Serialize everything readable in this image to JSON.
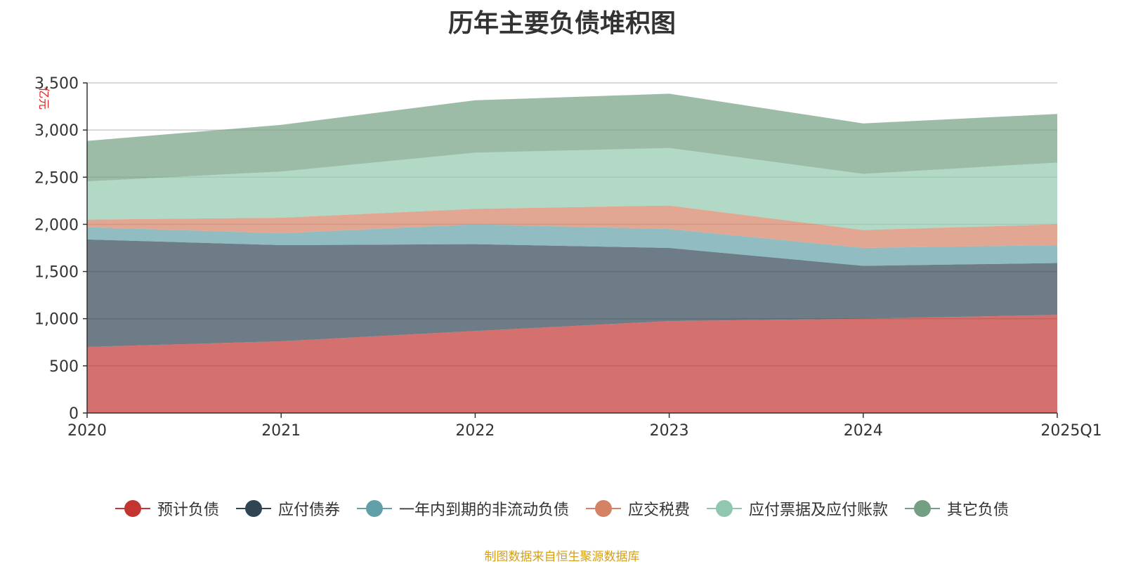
{
  "chart_data": {
    "type": "area",
    "stacked": true,
    "title": "历年主要负债堆积图",
    "ylabel": "亿元",
    "xlabel": "",
    "categories": [
      "2020",
      "2021",
      "2022",
      "2023",
      "2024",
      "2025Q1"
    ],
    "y_ticks": [
      "0",
      "500",
      "1,000",
      "1,500",
      "2,000",
      "2,500",
      "3,000",
      "3,500"
    ],
    "ylim": [
      0,
      3500
    ],
    "grid": true,
    "legend_position": "bottom",
    "series": [
      {
        "name": "预计负债",
        "color": "#c23531",
        "values": [
          700,
          760,
          870,
          975,
          1000,
          1040
        ]
      },
      {
        "name": "应付债券",
        "color": "#2f4554",
        "values": [
          1140,
          1020,
          920,
          775,
          560,
          550
        ]
      },
      {
        "name": "一年内到期的非流动负债",
        "color": "#61a0a8",
        "values": [
          130,
          125,
          210,
          200,
          190,
          190
        ]
      },
      {
        "name": "应交税费",
        "color": "#d48265",
        "values": [
          80,
          165,
          165,
          250,
          190,
          220
        ]
      },
      {
        "name": "应付票据及应付账款",
        "color": "#91c7ae",
        "values": [
          405,
          490,
          595,
          610,
          595,
          655
        ]
      },
      {
        "name": "其它负债",
        "color": "#749f83",
        "values": [
          430,
          495,
          555,
          575,
          535,
          515
        ]
      }
    ]
  },
  "footer": {
    "source": "制图数据来自恒生聚源数据库"
  }
}
